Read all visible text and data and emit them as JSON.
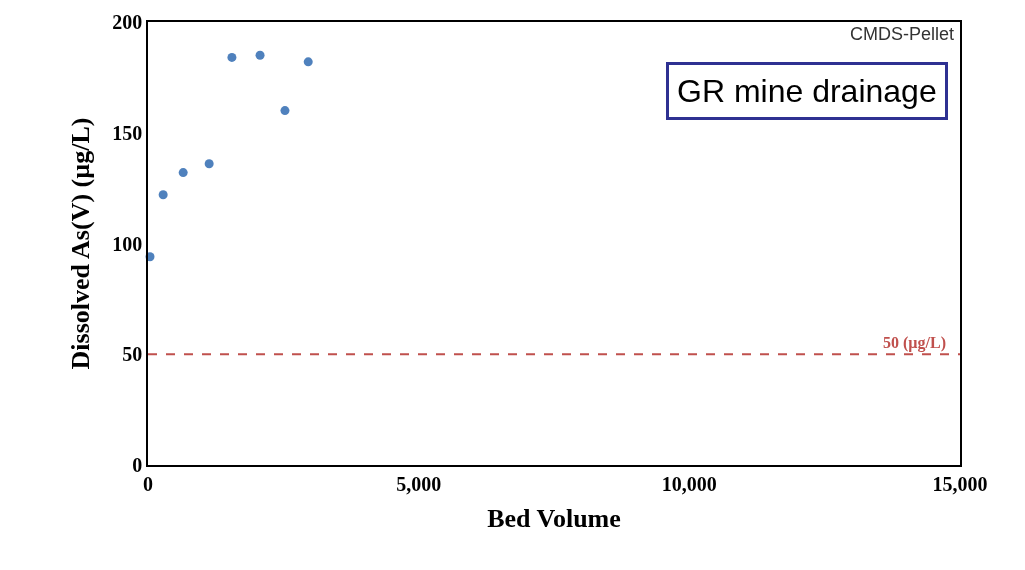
{
  "chart_data": {
    "type": "scatter",
    "xlabel": "Bed Volume",
    "ylabel": "Dissolved As(V) (µg/L)",
    "x": [
      37,
      280,
      650,
      1130,
      1550,
      2070,
      2530,
      2960
    ],
    "values": [
      94,
      122,
      132,
      136,
      184,
      185,
      160,
      182
    ],
    "color": "#4f81bd",
    "marker": "circle",
    "xlim": [
      0,
      15000
    ],
    "xticks": [
      0,
      {
        "value": 5000,
        "label": "5,000"
      },
      {
        "value": 10000,
        "label": "10,000"
      },
      {
        "value": 15000,
        "label": "15,000"
      }
    ],
    "ylim": [
      0,
      200
    ],
    "yticks": [
      0,
      50,
      100,
      150,
      200
    ],
    "ref_lines": [
      {
        "axis": "y",
        "value": 50,
        "label": "50 (µg/L)",
        "color": "#c0504d",
        "line_style": "dashed"
      }
    ],
    "annotations": [
      "CMDS-Pellet",
      "GR mine drainage"
    ]
  }
}
